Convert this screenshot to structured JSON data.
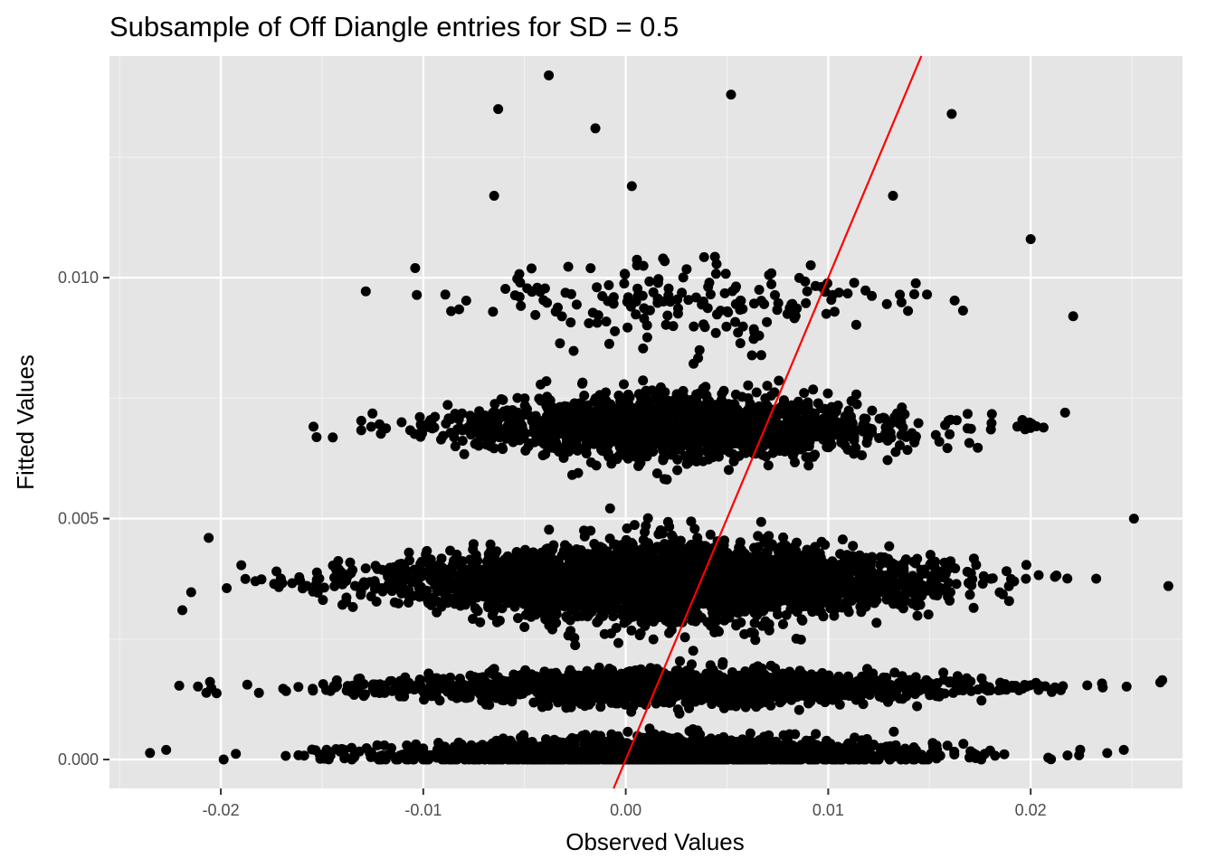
{
  "colors": {
    "panel_background": "#e5e5e5",
    "grid_major": "#ffffff",
    "grid_minor": "#f2f2f2",
    "points": "#000000",
    "fit_line": "#ff0000",
    "tick_text": "#4d4d4d"
  },
  "chart_data": {
    "type": "scatter",
    "title": "Subsample of Off Diangle entries for SD = 0.5",
    "xlabel": "Observed Values",
    "ylabel": "Fitted Values",
    "xlim": [
      -0.0255,
      0.0275
    ],
    "ylim": [
      -0.0006,
      0.0146
    ],
    "x_ticks": [
      -0.02,
      -0.01,
      0.0,
      0.01,
      0.02
    ],
    "x_tick_labels": [
      "-0.02",
      "-0.01",
      "0.00",
      "0.01",
      "0.02"
    ],
    "y_ticks": [
      0.0,
      0.005,
      0.01
    ],
    "y_tick_labels": [
      "0.000",
      "0.005",
      "0.010"
    ],
    "grid": true,
    "legend": "none",
    "reference_line": {
      "slope": 1,
      "intercept": 0
    },
    "clusters": [
      {
        "name": "",
        "x_mean": 0.002,
        "x_sd": 0.0068,
        "x_range": [
          -0.0235,
          0.0255
        ],
        "y_center": 0.0001,
        "y_spread": 0.0004,
        "count": 1400
      },
      {
        "name": "",
        "x_mean": 0.002,
        "x_sd": 0.0075,
        "x_range": [
          -0.023,
          0.0265
        ],
        "y_center": 0.0015,
        "y_spread": 0.00035,
        "count": 1600
      },
      {
        "name": "",
        "x_mean": 0.002,
        "x_sd": 0.0065,
        "x_range": [
          -0.022,
          0.027
        ],
        "y_center": 0.0037,
        "y_spread": 0.0008,
        "count": 3200
      },
      {
        "name": "",
        "x_mean": 0.0025,
        "x_sd": 0.0055,
        "x_range": [
          -0.017,
          0.022
        ],
        "y_center": 0.0069,
        "y_spread": 0.0007,
        "count": 1500
      },
      {
        "name": "",
        "x_mean": 0.003,
        "x_sd": 0.006,
        "x_range": [
          -0.015,
          0.021
        ],
        "y_center": 0.0095,
        "y_spread": 0.001,
        "count": 180
      }
    ],
    "outliers": [
      [
        -0.0038,
        0.0142
      ],
      [
        0.0052,
        0.0138
      ],
      [
        -0.0063,
        0.0135
      ],
      [
        0.0161,
        0.0134
      ],
      [
        -0.0015,
        0.0131
      ],
      [
        0.0003,
        0.0119
      ],
      [
        -0.0065,
        0.0117
      ],
      [
        0.0132,
        0.0117
      ],
      [
        0.02,
        0.0108
      ],
      [
        0.0221,
        0.0092
      ],
      [
        -0.0104,
        0.0102
      ],
      [
        0.0217,
        0.0072
      ],
      [
        -0.0206,
        0.0046
      ],
      [
        -0.0219,
        0.0031
      ],
      [
        0.0251,
        0.005
      ],
      [
        0.0268,
        0.0036
      ],
      [
        0.0264,
        0.0016
      ],
      [
        -0.0227,
        0.0002
      ],
      [
        0.0246,
        0.0002
      ]
    ]
  }
}
